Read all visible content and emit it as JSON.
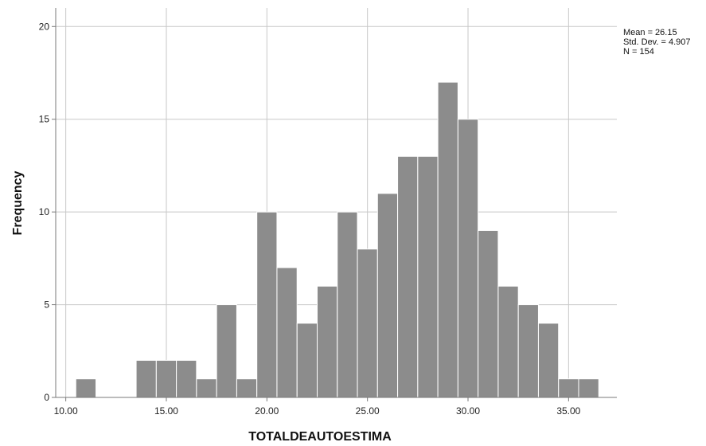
{
  "chart_data": {
    "type": "bar",
    "title": "",
    "xlabel": "TOTALDEAUTOESTIMA",
    "ylabel": "Frequency",
    "xlim": [
      9.5,
      37.4
    ],
    "ylim": [
      0,
      21
    ],
    "grid": true,
    "bin_width": 1.0,
    "x_ticks": [
      10,
      15,
      20,
      25,
      30,
      35
    ],
    "x_tick_labels": [
      "10.00",
      "15.00",
      "20.00",
      "25.00",
      "30.00",
      "35.00"
    ],
    "y_ticks": [
      0,
      5,
      10,
      15,
      20
    ],
    "y_tick_labels": [
      "0",
      "5",
      "10",
      "15",
      "20"
    ],
    "bins": [
      {
        "start": 10.5,
        "count": 1
      },
      {
        "start": 13.5,
        "count": 2
      },
      {
        "start": 14.5,
        "count": 2
      },
      {
        "start": 15.5,
        "count": 2
      },
      {
        "start": 16.5,
        "count": 1
      },
      {
        "start": 17.5,
        "count": 5
      },
      {
        "start": 18.5,
        "count": 1
      },
      {
        "start": 19.5,
        "count": 10
      },
      {
        "start": 20.5,
        "count": 7
      },
      {
        "start": 21.5,
        "count": 4
      },
      {
        "start": 22.5,
        "count": 6
      },
      {
        "start": 23.5,
        "count": 10
      },
      {
        "start": 24.5,
        "count": 8
      },
      {
        "start": 25.5,
        "count": 11
      },
      {
        "start": 26.5,
        "count": 13
      },
      {
        "start": 27.5,
        "count": 13
      },
      {
        "start": 28.5,
        "count": 17
      },
      {
        "start": 29.5,
        "count": 15
      },
      {
        "start": 30.5,
        "count": 9
      },
      {
        "start": 31.5,
        "count": 6
      },
      {
        "start": 32.5,
        "count": 5
      },
      {
        "start": 33.5,
        "count": 4
      },
      {
        "start": 34.5,
        "count": 1
      },
      {
        "start": 35.5,
        "count": 1
      }
    ],
    "stats": [
      "Mean = 26.15",
      "Std. Dev. = 4.907",
      "N = 154"
    ],
    "colors": {
      "bar_fill": "#8c8c8c",
      "bar_stroke": "#ffffff",
      "grid": "#c8c8c8",
      "axis": "#7a7a7a"
    }
  }
}
